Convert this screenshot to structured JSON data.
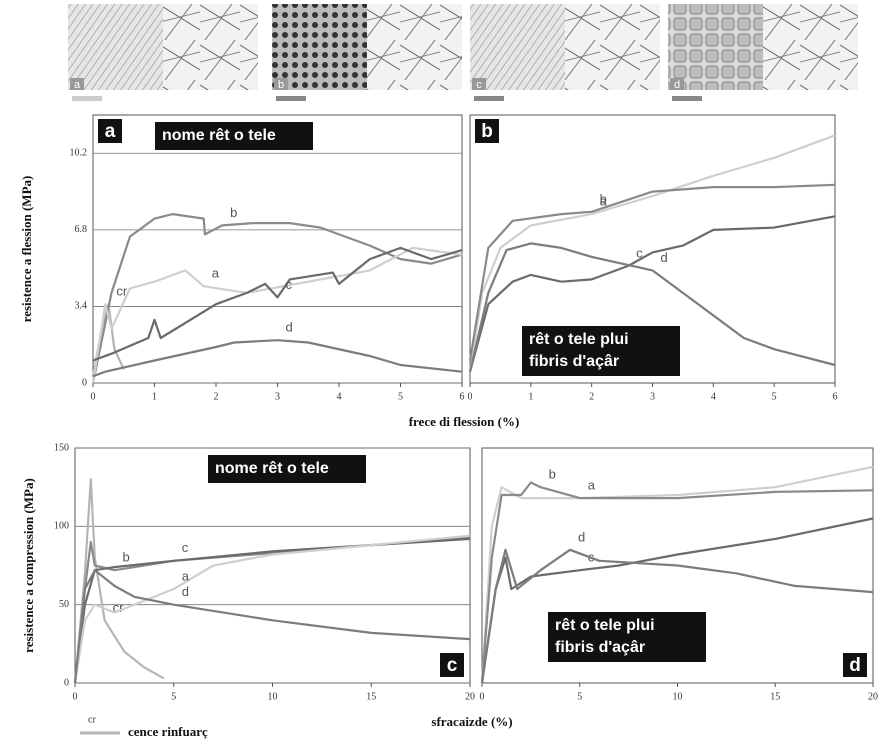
{
  "images": {
    "labels": [
      "a",
      "b",
      "c",
      "d"
    ]
  },
  "chart_data": [
    {
      "type": "line",
      "panel": "a",
      "annotation": [
        "nome rêt o tele"
      ],
      "ylabel": "resistence a flession (MPa)",
      "xlabel": "frece di flession (%)",
      "xlim": [
        0,
        6
      ],
      "xticks": [
        0,
        1,
        2,
        3,
        4,
        5,
        6
      ],
      "ylim": [
        0,
        11.9
      ],
      "yticks": [
        0,
        3.4,
        6.8,
        10.2
      ],
      "grid": true,
      "series": [
        {
          "name": "cr",
          "color": "#b4b4b4",
          "x": [
            0,
            0.15,
            0.25,
            0.35,
            0.5
          ],
          "values": [
            0.3,
            2.5,
            3.5,
            1.5,
            0.6
          ]
        },
        {
          "name": "b",
          "color": "#8a8a8a",
          "x": [
            0,
            0.3,
            0.6,
            1,
            1.3,
            1.8,
            1.82,
            2.1,
            2.6,
            3.2,
            3.7,
            4.5,
            5,
            5.5,
            6
          ],
          "values": [
            0,
            4,
            6.5,
            7.3,
            7.5,
            7.3,
            6.6,
            7,
            7.1,
            7.1,
            6.9,
            6.1,
            5.5,
            5.3,
            5.7
          ]
        },
        {
          "name": "a",
          "color": "#cfcfcf",
          "x": [
            0,
            0.2,
            0.3,
            0.6,
            1,
            1.5,
            1.8,
            2.5,
            3.5,
            4.5,
            5.2,
            6
          ],
          "values": [
            0,
            3.5,
            2.4,
            4.2,
            4.5,
            5,
            4.3,
            4,
            4.5,
            5,
            6,
            5.7
          ]
        },
        {
          "name": "c",
          "color": "#6a6a6a",
          "x": [
            0,
            0.3,
            0.9,
            1,
            1.1,
            2,
            2.5,
            2.8,
            3,
            3.2,
            3.9,
            4,
            4.5,
            5,
            5.5,
            6
          ],
          "values": [
            1,
            1.3,
            2,
            2.8,
            2,
            3.5,
            4,
            4.4,
            3.8,
            4.6,
            4.9,
            4.4,
            5.5,
            6,
            5.5,
            5.9
          ]
        },
        {
          "name": "d",
          "color": "#7c7c7c",
          "x": [
            0,
            0.2,
            1,
            2,
            2.3,
            3,
            3.5,
            4.5,
            5,
            6
          ],
          "values": [
            0.3,
            0.5,
            1,
            1.6,
            1.8,
            1.9,
            1.8,
            1.2,
            0.8,
            0.5
          ]
        }
      ]
    },
    {
      "type": "line",
      "panel": "b",
      "annotation": [
        "rêt o tele plui",
        "fibris d'açâr"
      ],
      "xlim": [
        0,
        6
      ],
      "xticks": [
        0,
        1,
        2,
        3,
        4,
        5,
        6
      ],
      "ylim": [
        0,
        11.9
      ],
      "grid": true,
      "series": [
        {
          "name": "a",
          "color": "#cfcfcf",
          "x": [
            0,
            0.2,
            0.5,
            1,
            2,
            3,
            4,
            5,
            6
          ],
          "values": [
            0.5,
            4,
            6,
            7,
            7.5,
            8.3,
            9.2,
            10,
            11
          ]
        },
        {
          "name": "b",
          "color": "#8a8a8a",
          "x": [
            0,
            0.3,
            0.7,
            1.5,
            2,
            3,
            4,
            5,
            6
          ],
          "values": [
            1,
            6,
            7.2,
            7.5,
            7.6,
            8.5,
            8.7,
            8.7,
            8.8
          ]
        },
        {
          "name": "c",
          "color": "#6a6a6a",
          "x": [
            0,
            0.3,
            0.7,
            1,
            1.5,
            2,
            2.6,
            3,
            3.5,
            4,
            5,
            6
          ],
          "values": [
            0.5,
            3.5,
            4.5,
            4.8,
            4.5,
            4.6,
            5.2,
            5.8,
            6.1,
            6.8,
            6.9,
            7.4
          ]
        },
        {
          "name": "d",
          "color": "#7c7c7c",
          "x": [
            0,
            0.3,
            0.6,
            1,
            1.5,
            2,
            3,
            3.5,
            4,
            4.5,
            5,
            6
          ],
          "values": [
            0.5,
            4,
            5.9,
            6.2,
            6,
            5.6,
            5,
            4,
            3,
            2,
            1.5,
            0.8
          ]
        }
      ]
    },
    {
      "type": "line",
      "panel": "c",
      "annotation": [
        "nome rêt o tele"
      ],
      "ylabel": "resistence a compression (MPa)",
      "xlabel": "sfracaizde (%)",
      "legend_label": "cence rinfuarç",
      "xlim": [
        0,
        20
      ],
      "xticks": [
        0,
        5,
        10,
        15,
        20
      ],
      "ylim": [
        0,
        150
      ],
      "yticks": [
        0,
        50,
        100,
        150
      ],
      "grid": true,
      "series": [
        {
          "name": "cr",
          "color": "#b4b4b4",
          "x": [
            0,
            0.5,
            0.8,
            1,
            1.5,
            2.5,
            3.5,
            4.5
          ],
          "values": [
            0,
            70,
            130,
            80,
            40,
            20,
            10,
            3
          ]
        },
        {
          "name": "b",
          "color": "#8a8a8a",
          "x": [
            0,
            0.5,
            0.8,
            1,
            2,
            5,
            10,
            15,
            20
          ],
          "values": [
            0,
            60,
            90,
            75,
            72,
            78,
            83,
            88,
            93
          ]
        },
        {
          "name": "c",
          "color": "#6a6a6a",
          "x": [
            0,
            0.5,
            1,
            2,
            5,
            10,
            15,
            20
          ],
          "values": [
            0,
            50,
            72,
            74,
            78,
            84,
            88,
            92
          ]
        },
        {
          "name": "a",
          "color": "#cfcfcf",
          "x": [
            0,
            0.5,
            1,
            2,
            3,
            5,
            7,
            10,
            15,
            20
          ],
          "values": [
            0,
            40,
            50,
            45,
            50,
            60,
            75,
            82,
            88,
            94
          ]
        },
        {
          "name": "d",
          "color": "#7c7c7c",
          "x": [
            0,
            0.5,
            1,
            2,
            3,
            5,
            8,
            10,
            15,
            20
          ],
          "values": [
            0,
            60,
            72,
            62,
            55,
            50,
            44,
            40,
            32,
            28
          ]
        }
      ]
    },
    {
      "type": "line",
      "panel": "d",
      "annotation": [
        "rêt o tele plui",
        "fibris d'açâr"
      ],
      "xlim": [
        0,
        20
      ],
      "xticks": [
        0,
        5,
        10,
        15,
        20
      ],
      "ylim": [
        0,
        150
      ],
      "grid": true,
      "series": [
        {
          "name": "a",
          "color": "#cfcfcf",
          "x": [
            0,
            0.5,
            1,
            2,
            5,
            10,
            15,
            20
          ],
          "values": [
            0,
            100,
            125,
            118,
            118,
            120,
            125,
            138
          ]
        },
        {
          "name": "b",
          "color": "#8a8a8a",
          "x": [
            0,
            0.5,
            1,
            2,
            2.5,
            3,
            5,
            10,
            15,
            20
          ],
          "values": [
            0,
            80,
            120,
            120,
            128,
            125,
            118,
            118,
            122,
            123
          ]
        },
        {
          "name": "c",
          "color": "#6a6a6a",
          "x": [
            0,
            0.7,
            1.2,
            1.5,
            2.5,
            5,
            7,
            10,
            15,
            20
          ],
          "values": [
            0,
            60,
            80,
            60,
            68,
            72,
            75,
            82,
            92,
            105
          ]
        },
        {
          "name": "d",
          "color": "#7c7c7c",
          "x": [
            0,
            0.7,
            1.2,
            1.8,
            3,
            4.5,
            6,
            10,
            13,
            16,
            20
          ],
          "values": [
            0,
            60,
            85,
            60,
            72,
            85,
            78,
            75,
            70,
            62,
            58
          ]
        }
      ]
    }
  ]
}
